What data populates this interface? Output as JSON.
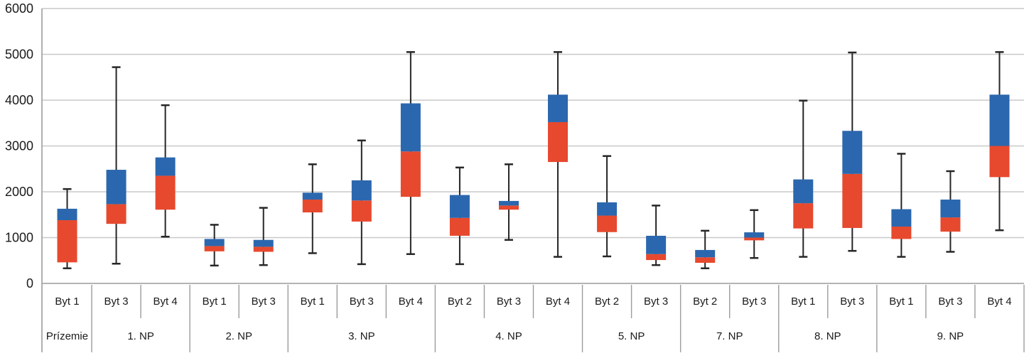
{
  "chart_data": {
    "type": "boxplot",
    "title": "",
    "xlabel": "",
    "ylabel": "",
    "grid": true,
    "legend": "none",
    "y_axis": {
      "min": 0,
      "max": 6000,
      "tick_step": 1000,
      "ticks": [
        0,
        1000,
        2000,
        3000,
        4000,
        5000,
        6000
      ],
      "tick_labels": [
        "0",
        "1000",
        "2000",
        "3000",
        "4000",
        "5000",
        "6000"
      ]
    },
    "groups": [
      {
        "floor": "Prízemie",
        "items": [
          {
            "label": "Byt 1",
            "low": 330,
            "q1": 460,
            "median": 1380,
            "q3": 1630,
            "high": 2060
          }
        ]
      },
      {
        "floor": "1. NP",
        "items": [
          {
            "label": "Byt 3",
            "low": 430,
            "q1": 1300,
            "median": 1730,
            "q3": 2480,
            "high": 4720
          },
          {
            "label": "Byt 4",
            "low": 1020,
            "q1": 1610,
            "median": 2350,
            "q3": 2750,
            "high": 3890
          }
        ]
      },
      {
        "floor": "2. NP",
        "items": [
          {
            "label": "Byt 1",
            "low": 390,
            "q1": 700,
            "median": 815,
            "q3": 970,
            "high": 1280
          },
          {
            "label": "Byt 3",
            "low": 400,
            "q1": 690,
            "median": 800,
            "q3": 950,
            "high": 1650
          }
        ]
      },
      {
        "floor": "3. NP",
        "items": [
          {
            "label": "Byt 1",
            "low": 660,
            "q1": 1550,
            "median": 1830,
            "q3": 1980,
            "high": 2600
          },
          {
            "label": "Byt 3",
            "low": 420,
            "q1": 1350,
            "median": 1810,
            "q3": 2250,
            "high": 3120
          },
          {
            "label": "Byt 4",
            "low": 640,
            "q1": 1890,
            "median": 2880,
            "q3": 3930,
            "high": 5050
          }
        ]
      },
      {
        "floor": "4. NP",
        "items": [
          {
            "label": "Byt 2",
            "low": 420,
            "q1": 1040,
            "median": 1430,
            "q3": 1930,
            "high": 2530
          },
          {
            "label": "Byt 3",
            "low": 950,
            "q1": 1610,
            "median": 1700,
            "q3": 1800,
            "high": 2600
          },
          {
            "label": "Byt 4",
            "low": 580,
            "q1": 2650,
            "median": 3520,
            "q3": 4120,
            "high": 5050
          }
        ]
      },
      {
        "floor": "5. NP",
        "items": [
          {
            "label": "Byt 2",
            "low": 590,
            "q1": 1120,
            "median": 1480,
            "q3": 1770,
            "high": 2780
          },
          {
            "label": "Byt 3",
            "low": 400,
            "q1": 510,
            "median": 640,
            "q3": 1040,
            "high": 1700
          }
        ]
      },
      {
        "floor": "7. NP",
        "items": [
          {
            "label": "Byt 2",
            "low": 330,
            "q1": 450,
            "median": 570,
            "q3": 730,
            "high": 1150
          },
          {
            "label": "Byt 3",
            "low": 555,
            "q1": 940,
            "median": 1000,
            "q3": 1115,
            "high": 1600
          }
        ]
      },
      {
        "floor": "8. NP",
        "items": [
          {
            "label": "Byt 1",
            "low": 580,
            "q1": 1200,
            "median": 1750,
            "q3": 2270,
            "high": 3990
          },
          {
            "label": "Byt 3",
            "low": 710,
            "q1": 1210,
            "median": 2390,
            "q3": 3330,
            "high": 5040
          }
        ]
      },
      {
        "floor": "9. NP",
        "items": [
          {
            "label": "Byt 1",
            "low": 580,
            "q1": 970,
            "median": 1240,
            "q3": 1620,
            "high": 2830
          },
          {
            "label": "Byt 3",
            "low": 690,
            "q1": 1130,
            "median": 1440,
            "q3": 1830,
            "high": 2450
          },
          {
            "label": "Byt 4",
            "low": 1160,
            "q1": 2320,
            "median": 3000,
            "q3": 4120,
            "high": 5050
          }
        ]
      }
    ],
    "colors": {
      "box_lower": "#E7492E",
      "box_upper": "#2B67AE",
      "whisker": "#262626",
      "gridline": "#C9C9C9",
      "axis_line": "#9C9C9C",
      "text": "#1A1A1A"
    }
  }
}
